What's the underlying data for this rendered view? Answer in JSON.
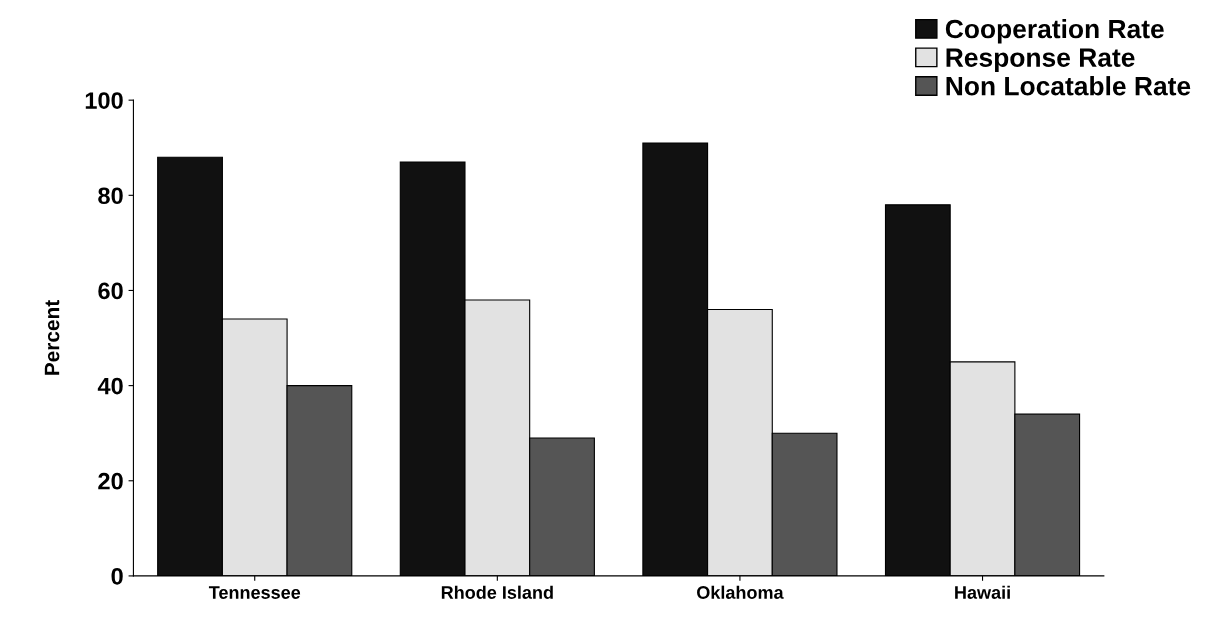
{
  "chart_data": {
    "type": "bar",
    "ylabel": "Percent",
    "categories": [
      "Tennessee",
      "Rhode Island",
      "Oklahoma",
      "Hawaii"
    ],
    "series": [
      {
        "name": "Cooperation Rate",
        "color": "#111111",
        "values": [
          88,
          87,
          91,
          78
        ]
      },
      {
        "name": "Response Rate",
        "color": "#e2e2e2",
        "values": [
          54,
          58,
          56,
          45
        ]
      },
      {
        "name": "Non Locatable Rate",
        "color": "#555555",
        "values": [
          40,
          29,
          30,
          34
        ]
      }
    ],
    "ylim": [
      0,
      100
    ],
    "yticks": [
      0,
      20,
      40,
      60,
      80,
      100
    ],
    "grid": false,
    "legend": "top right"
  }
}
